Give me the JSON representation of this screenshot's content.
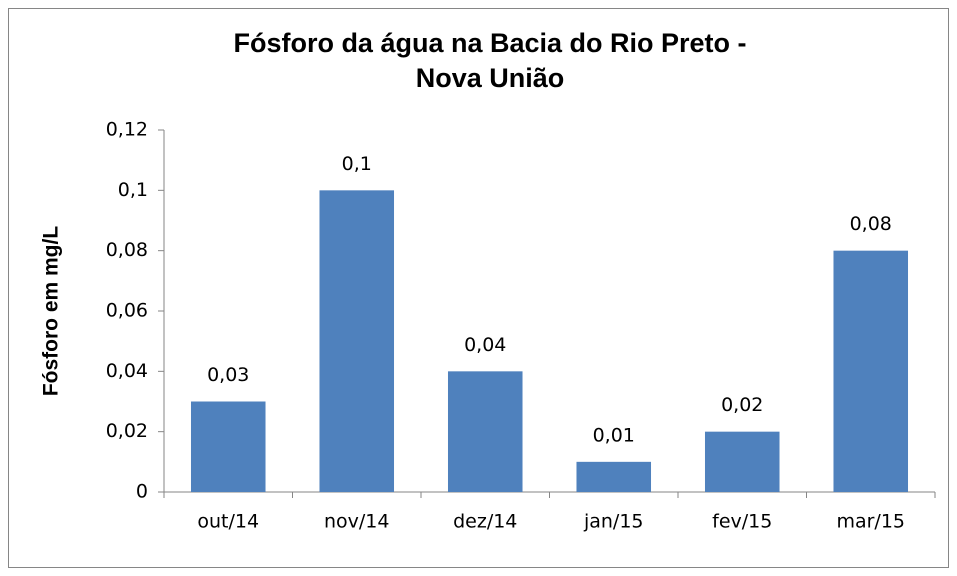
{
  "chart_data": {
    "type": "bar",
    "title": [
      "Fósforo da água na Bacia do Rio Preto -",
      "Nova União"
    ],
    "y_label": "Fósforo em mg/L",
    "categories": [
      "out/14",
      "nov/14",
      "dez/14",
      "jan/15",
      "fev/15",
      "mar/15"
    ],
    "values": [
      0.03,
      0.1,
      0.04,
      0.01,
      0.02,
      0.08
    ],
    "value_labels": [
      "0,03",
      "0,1",
      "0,04",
      "0,01",
      "0,02",
      "0,08"
    ],
    "color": "#4f81bd",
    "ylim": [
      0,
      0.12
    ],
    "yticks": [
      0,
      {
        "value": 0.02,
        "label": "0,02"
      },
      {
        "value": 0.04,
        "label": "0,04"
      },
      {
        "value": 0.06,
        "label": "0,06"
      },
      {
        "value": 0.08,
        "label": "0,08"
      },
      {
        "value": 0.1,
        "label": "0,1"
      },
      {
        "value": 0.12,
        "label": "0,12"
      }
    ],
    "grid": false
  }
}
